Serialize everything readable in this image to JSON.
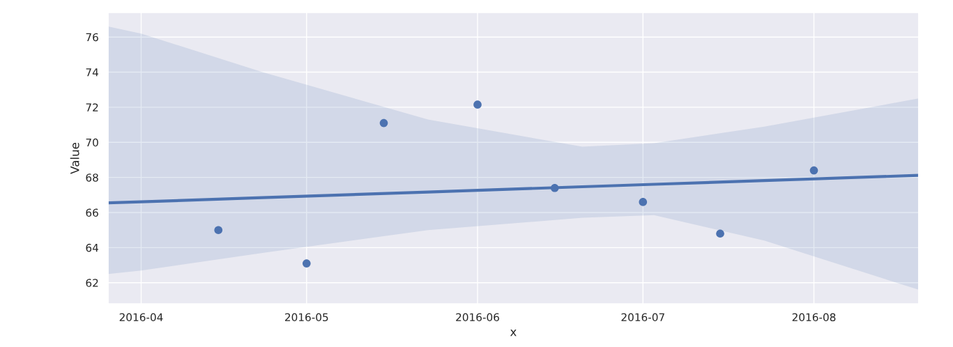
{
  "chart_data": {
    "type": "scatter",
    "xlabel": "x",
    "ylabel": "Value",
    "xlim": [
      "2016-03-26",
      "2016-08-20"
    ],
    "xticks": [
      "2016-04",
      "2016-05",
      "2016-06",
      "2016-07",
      "2016-08"
    ],
    "ylim": [
      60.8,
      77.4
    ],
    "yticks": [
      62,
      64,
      66,
      68,
      70,
      72,
      74,
      76
    ],
    "grid": true,
    "marker": "circle",
    "series": [
      {
        "color": "#4c72b0",
        "x": [
          "2016-04-15",
          "2016-05-01",
          "2016-05-15",
          "2016-06-01",
          "2016-06-15",
          "2016-07-01",
          "2016-07-15",
          "2016-08-01"
        ],
        "values": [
          65.0,
          63.1,
          71.1,
          72.15,
          67.4,
          66.6,
          64.8,
          68.4
        ]
      },
      {
        "type": "line",
        "color": "#4c72b0",
        "marker": "none",
        "x": [
          "2016-03-26",
          "2016-04-01",
          "2016-04-23",
          "2016-05-23",
          "2016-06-20",
          "2016-07-03",
          "2016-07-23",
          "2016-08-20"
        ],
        "values": [
          66.55,
          66.61,
          66.85,
          67.17,
          67.47,
          67.61,
          67.82,
          68.12
        ],
        "lower": [
          62.5,
          62.7,
          63.7,
          65.0,
          65.7,
          65.85,
          64.4,
          61.6
        ],
        "upper": [
          76.6,
          76.2,
          74.0,
          71.3,
          69.75,
          69.95,
          70.9,
          72.5
        ]
      }
    ]
  }
}
